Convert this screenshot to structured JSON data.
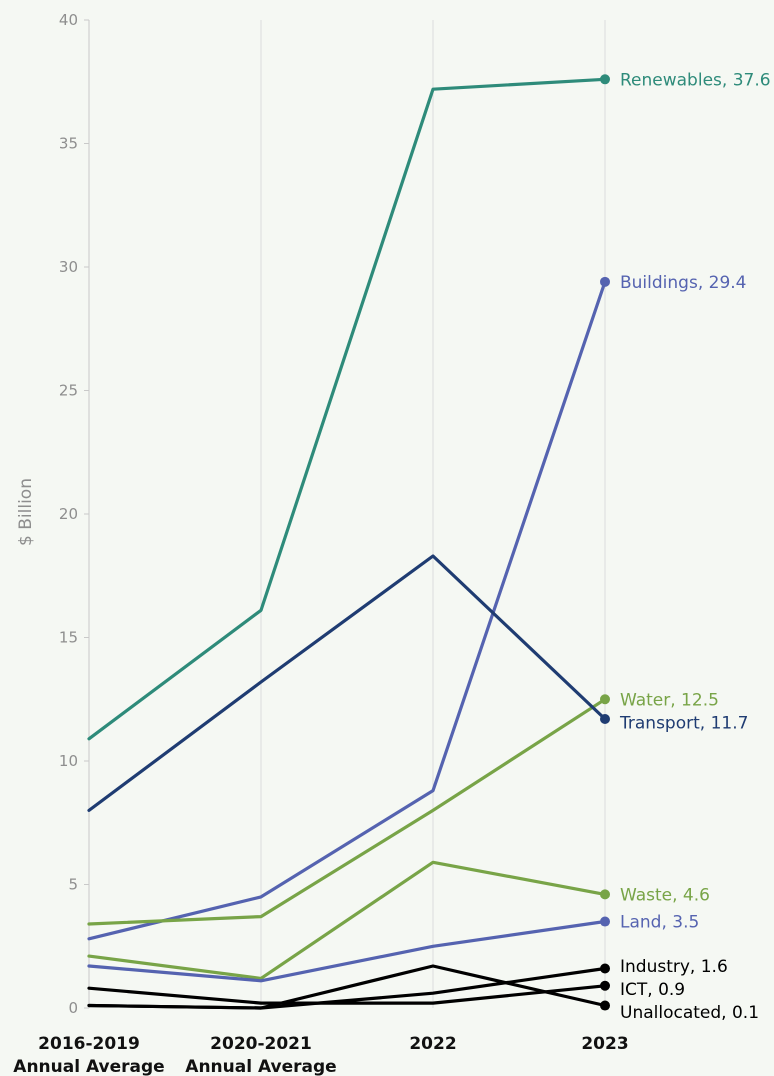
{
  "chart_data": {
    "type": "line",
    "title": "",
    "ylabel": "$ Billion",
    "ylim": [
      0,
      40
    ],
    "yticks": [
      0,
      5,
      10,
      15,
      20,
      25,
      30,
      35,
      40
    ],
    "grid": "vertical",
    "categories": [
      {
        "line1": "2016-2019",
        "line2": "Annual Average"
      },
      {
        "line1": "2020-2021",
        "line2": "Annual Average"
      },
      {
        "line1": "2022",
        "line2": ""
      },
      {
        "line1": "2023",
        "line2": ""
      }
    ],
    "series": [
      {
        "name": "Renewables",
        "end_label": "Renewables, 37.6",
        "color": "#2e8b7a",
        "values": [
          10.9,
          16.1,
          37.2,
          37.6
        ]
      },
      {
        "name": "Buildings",
        "end_label": "Buildings, 29.4",
        "color": "#5563b0",
        "values": [
          2.8,
          4.5,
          8.8,
          29.4
        ]
      },
      {
        "name": "Water",
        "end_label": "Water, 12.5",
        "color": "#78a447",
        "values": [
          3.4,
          3.7,
          8.0,
          12.5
        ]
      },
      {
        "name": "Transport",
        "end_label": "Transport, 11.7",
        "color": "#1f3c72",
        "values": [
          8.0,
          13.2,
          18.3,
          11.7
        ]
      },
      {
        "name": "Waste",
        "end_label": "Waste, 4.6",
        "color": "#78a447",
        "values": [
          2.1,
          1.2,
          5.9,
          4.6
        ]
      },
      {
        "name": "Land",
        "end_label": "Land, 3.5",
        "color": "#5563b0",
        "values": [
          1.7,
          1.1,
          2.5,
          3.5
        ]
      },
      {
        "name": "Industry",
        "end_label": "Industry, 1.6",
        "color": "#000000",
        "values": [
          0.1,
          0.0,
          0.6,
          1.6
        ]
      },
      {
        "name": "ICT",
        "end_label": "ICT, 0.9",
        "color": "#000000",
        "values": [
          0.8,
          0.2,
          0.2,
          0.9
        ]
      },
      {
        "name": "Unallocated",
        "end_label": "Unallocated, 0.1",
        "color": "#000000",
        "values": [
          0.1,
          0.0,
          1.7,
          0.1
        ]
      }
    ]
  }
}
